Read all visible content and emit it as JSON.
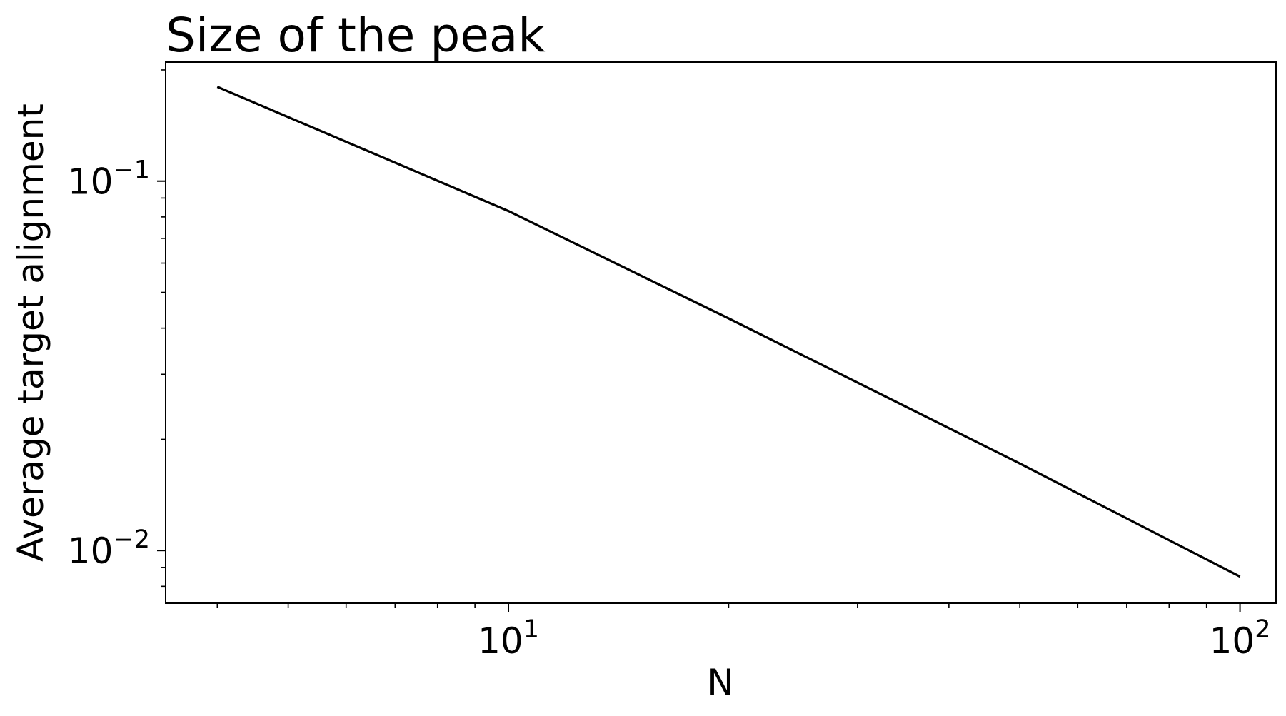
{
  "chart_data": {
    "type": "line",
    "title": "Size of the peak",
    "xlabel": "N",
    "ylabel": "Average target alignment",
    "xscale": "log",
    "yscale": "log",
    "xlim": [
      3.4,
      112
    ],
    "ylim": [
      0.0072,
      0.21
    ],
    "x_ticks": [
      {
        "value": 10,
        "base": "10",
        "exp": "1"
      },
      {
        "value": 100,
        "base": "10",
        "exp": "2"
      }
    ],
    "y_ticks": [
      {
        "value": 0.1,
        "base": "10",
        "exp": "−1"
      },
      {
        "value": 0.01,
        "base": "10",
        "exp": "−2"
      }
    ],
    "grid": false,
    "series": [
      {
        "color": "#000000",
        "x": [
          4,
          10,
          20,
          50,
          100
        ],
        "y": [
          0.18,
          0.083,
          0.0425,
          0.0172,
          0.0085
        ]
      }
    ]
  }
}
